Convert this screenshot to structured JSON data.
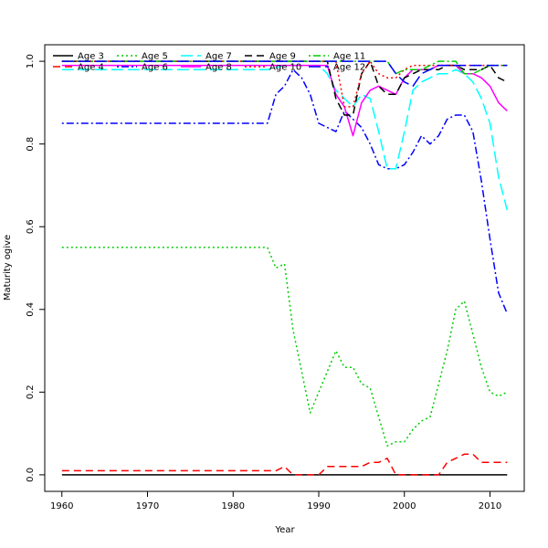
{
  "chart_data": {
    "type": "line",
    "title": "",
    "xlabel": "Year",
    "ylabel": "Maturity ogive",
    "xlim": [
      1958,
      2014
    ],
    "ylim": [
      -0.04,
      1.04
    ],
    "x_ticks": [
      1960,
      1970,
      1980,
      1990,
      2000,
      2010
    ],
    "y_ticks": [
      0.0,
      0.2,
      0.4,
      0.6,
      0.8,
      1.0
    ],
    "x_tick_labels": [
      "1960",
      "1970",
      "1980",
      "1990",
      "2000",
      "2010"
    ],
    "y_tick_labels": [
      "0.0",
      "0.2",
      "0.4",
      "0.6",
      "0.8",
      "1.0"
    ],
    "grid": false,
    "legend_position": "top",
    "series": [
      {
        "name": "Age 3",
        "color": "#000000",
        "dash": "solid",
        "x": [
          1960,
          2012
        ],
        "y": [
          0.0,
          0.0
        ]
      },
      {
        "name": "Age 4",
        "color": "#ff0000",
        "dash": "dashed",
        "x": [
          1960,
          1984,
          1985,
          1986,
          1987,
          1988,
          1989,
          1990,
          1991,
          1992,
          1993,
          1994,
          1995,
          1996,
          1997,
          1998,
          1999,
          2000,
          2001,
          2002,
          2003,
          2004,
          2005,
          2006,
          2007,
          2008,
          2009,
          2010,
          2011,
          2012
        ],
        "y": [
          0.01,
          0.01,
          0.01,
          0.02,
          0.0,
          0.0,
          0.0,
          0.0,
          0.02,
          0.02,
          0.02,
          0.02,
          0.02,
          0.03,
          0.03,
          0.04,
          0.0,
          0.0,
          0.0,
          0.0,
          0.0,
          0.0,
          0.03,
          0.04,
          0.05,
          0.05,
          0.03,
          0.03,
          0.03,
          0.03
        ]
      },
      {
        "name": "Age 5",
        "color": "#00cd00",
        "dash": "dotted",
        "x": [
          1960,
          1984,
          1985,
          1986,
          1987,
          1988,
          1989,
          1990,
          1991,
          1992,
          1993,
          1994,
          1995,
          1996,
          1997,
          1998,
          1999,
          2000,
          2001,
          2002,
          2003,
          2004,
          2005,
          2006,
          2007,
          2008,
          2009,
          2010,
          2011,
          2012
        ],
        "y": [
          0.55,
          0.55,
          0.5,
          0.51,
          0.35,
          0.25,
          0.15,
          0.2,
          0.25,
          0.3,
          0.26,
          0.26,
          0.22,
          0.21,
          0.14,
          0.07,
          0.08,
          0.08,
          0.11,
          0.13,
          0.14,
          0.22,
          0.3,
          0.4,
          0.42,
          0.34,
          0.26,
          0.2,
          0.19,
          0.2
        ]
      },
      {
        "name": "Age 6",
        "color": "#0000ff",
        "dash": "dashdot",
        "x": [
          1960,
          1984,
          1985,
          1986,
          1987,
          1988,
          1989,
          1990,
          1991,
          1992,
          1993,
          1994,
          1995,
          1996,
          1997,
          1998,
          1999,
          2000,
          2001,
          2002,
          2003,
          2004,
          2005,
          2006,
          2007,
          2008,
          2009,
          2010,
          2011,
          2012
        ],
        "y": [
          0.85,
          0.85,
          0.92,
          0.94,
          0.98,
          0.96,
          0.92,
          0.85,
          0.84,
          0.83,
          0.88,
          0.86,
          0.84,
          0.8,
          0.75,
          0.74,
          0.74,
          0.75,
          0.78,
          0.82,
          0.8,
          0.82,
          0.86,
          0.87,
          0.87,
          0.83,
          0.71,
          0.57,
          0.44,
          0.39
        ]
      },
      {
        "name": "Age 7",
        "color": "#00ffff",
        "dash": "longdash",
        "x": [
          1960,
          1984,
          1986,
          1988,
          1989,
          1990,
          1991,
          1992,
          1993,
          1994,
          1995,
          1996,
          1997,
          1998,
          1999,
          2000,
          2001,
          2002,
          2003,
          2004,
          2005,
          2006,
          2007,
          2008,
          2009,
          2010,
          2011,
          2012
        ],
        "y": [
          0.98,
          0.98,
          0.99,
          0.99,
          0.99,
          0.99,
          0.97,
          0.93,
          0.91,
          0.89,
          0.92,
          0.91,
          0.83,
          0.74,
          0.74,
          0.83,
          0.93,
          0.95,
          0.96,
          0.97,
          0.97,
          0.98,
          0.97,
          0.95,
          0.91,
          0.85,
          0.72,
          0.64
        ]
      },
      {
        "name": "Age 8",
        "color": "#ff00ff",
        "dash": "solid",
        "x": [
          1960,
          1990,
          1991,
          1992,
          1993,
          1994,
          1995,
          1996,
          1997,
          1998,
          1999,
          2000,
          2001,
          2002,
          2003,
          2004,
          2005,
          2006,
          2007,
          2008,
          2009,
          2010,
          2011,
          2012
        ],
        "y": [
          0.99,
          0.99,
          0.99,
          0.92,
          0.89,
          0.82,
          0.9,
          0.93,
          0.94,
          0.93,
          0.92,
          0.96,
          0.98,
          0.98,
          0.98,
          0.99,
          0.99,
          0.99,
          0.97,
          0.97,
          0.96,
          0.94,
          0.9,
          0.88
        ]
      },
      {
        "name": "Age 9",
        "color": "#000000",
        "dash": "dashed",
        "x": [
          1960,
          1991,
          1992,
          1993,
          1994,
          1995,
          1996,
          1997,
          1998,
          1999,
          2000,
          2001,
          2002,
          2003,
          2004,
          2005,
          2006,
          2007,
          2008,
          2009,
          2010,
          2011,
          2012
        ],
        "y": [
          1.0,
          1.0,
          0.91,
          0.87,
          0.87,
          0.97,
          1.0,
          0.94,
          0.92,
          0.92,
          0.96,
          0.97,
          0.98,
          0.98,
          0.98,
          0.99,
          0.99,
          0.98,
          0.98,
          0.98,
          0.99,
          0.96,
          0.95
        ]
      },
      {
        "name": "Age 10",
        "color": "#ff0000",
        "dash": "dotted",
        "x": [
          1960,
          1992,
          1993,
          1994,
          1995,
          1996,
          1997,
          1998,
          1999,
          2000,
          2001,
          2002,
          2003,
          2004,
          2005,
          2006,
          2007,
          2008,
          2009,
          2010,
          2011,
          2012
        ],
        "y": [
          1.0,
          1.0,
          0.89,
          0.89,
          0.97,
          1.0,
          0.97,
          0.96,
          0.96,
          0.98,
          0.99,
          0.99,
          0.99,
          0.99,
          0.99,
          0.99,
          0.99,
          0.99,
          0.99,
          0.99,
          0.99,
          0.99
        ]
      },
      {
        "name": "Age 11",
        "color": "#00cd00",
        "dash": "dashdot",
        "x": [
          1960,
          1995,
          1996,
          1997,
          1998,
          1999,
          2000,
          2001,
          2002,
          2003,
          2004,
          2005,
          2006,
          2007,
          2008,
          2009,
          2010,
          2011,
          2012
        ],
        "y": [
          1.0,
          1.0,
          1.0,
          1.0,
          1.0,
          0.97,
          0.98,
          0.98,
          0.98,
          0.99,
          1.0,
          1.0,
          1.0,
          0.97,
          0.97,
          0.98,
          0.99,
          0.99,
          0.99
        ]
      },
      {
        "name": "Age 12",
        "color": "#0000ff",
        "dash": "longdash",
        "x": [
          1960,
          1997,
          1998,
          1999,
          2000,
          2001,
          2002,
          2003,
          2004,
          2005,
          2006,
          2007,
          2008,
          2009,
          2010,
          2011,
          2012
        ],
        "y": [
          1.0,
          1.0,
          1.0,
          0.97,
          0.95,
          0.94,
          0.97,
          0.98,
          0.99,
          0.99,
          0.99,
          0.99,
          0.99,
          0.99,
          0.99,
          0.99,
          0.99
        ]
      }
    ]
  }
}
